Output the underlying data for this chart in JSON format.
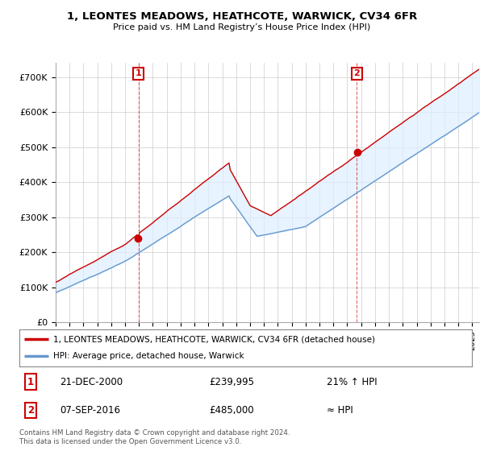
{
  "title": "1, LEONTES MEADOWS, HEATHCOTE, WARWICK, CV34 6FR",
  "subtitle": "Price paid vs. HM Land Registry’s House Price Index (HPI)",
  "ylabel_ticks": [
    "£0",
    "£100K",
    "£200K",
    "£300K",
    "£400K",
    "£500K",
    "£600K",
    "£700K"
  ],
  "ytick_values": [
    0,
    100000,
    200000,
    300000,
    400000,
    500000,
    600000,
    700000
  ],
  "ylim": [
    0,
    740000
  ],
  "line1_color": "#cc0000",
  "line2_color": "#6699cc",
  "fill_color": "#ddeeff",
  "background_color": "#ffffff",
  "grid_color": "#cccccc",
  "sale1_date": 2000.97,
  "sale1_price": 239995,
  "sale1_label": "1",
  "sale2_date": 2016.68,
  "sale2_price": 485000,
  "sale2_label": "2",
  "legend_line1": "1, LEONTES MEADOWS, HEATHCOTE, WARWICK, CV34 6FR (detached house)",
  "legend_line2": "HPI: Average price, detached house, Warwick",
  "table_row1": [
    "1",
    "21-DEC-2000",
    "£239,995",
    "21% ↑ HPI"
  ],
  "table_row2": [
    "2",
    "07-SEP-2016",
    "£485,000",
    "≈ HPI"
  ],
  "footnote": "Contains HM Land Registry data © Crown copyright and database right 2024.\nThis data is licensed under the Open Government Licence v3.0.",
  "xmin": 1995.0,
  "xmax": 2025.5
}
